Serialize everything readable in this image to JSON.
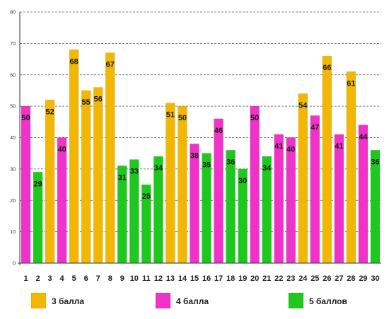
{
  "chart_data": {
    "type": "bar",
    "categories": [
      "1",
      "2",
      "3",
      "4",
      "5",
      "6",
      "7",
      "8",
      "9",
      "10",
      "11",
      "12",
      "13",
      "14",
      "15",
      "16",
      "17",
      "18",
      "19",
      "20",
      "21",
      "22",
      "23",
      "24",
      "25",
      "26",
      "27",
      "28",
      "29",
      "30"
    ],
    "values": [
      50,
      29,
      52,
      40,
      68,
      55,
      56,
      67,
      31,
      33,
      25,
      34,
      51,
      50,
      38,
      35,
      46,
      36,
      30,
      50,
      34,
      41,
      40,
      54,
      47,
      66,
      41,
      61,
      44,
      36
    ],
    "groups": [
      "4 балла",
      "5 баллов",
      "3 балла",
      "4 балла",
      "3 балла",
      "3 балла",
      "3 балла",
      "3 балла",
      "5 баллов",
      "5 баллов",
      "5 баллов",
      "5 баллов",
      "3 балла",
      "3 балла",
      "4 балла",
      "5 баллов",
      "4 балла",
      "5 баллов",
      "5 баллов",
      "4 балла",
      "5 баллов",
      "4 балла",
      "4 балла",
      "3 балла",
      "4 балла",
      "3 балла",
      "4 балла",
      "3 балла",
      "4 балла",
      "5 баллов"
    ],
    "yticks": [
      "0",
      "10",
      "20",
      "30",
      "40",
      "50",
      "60",
      "70",
      "80"
    ],
    "ylim": [
      0,
      80
    ],
    "grid": true,
    "legend": [
      {
        "name": "3 балла",
        "color": "#f2b705"
      },
      {
        "name": "4 балла",
        "color": "#f032c8"
      },
      {
        "name": "5 баллов",
        "color": "#1ec81e"
      }
    ],
    "legend_position": "bottom"
  }
}
